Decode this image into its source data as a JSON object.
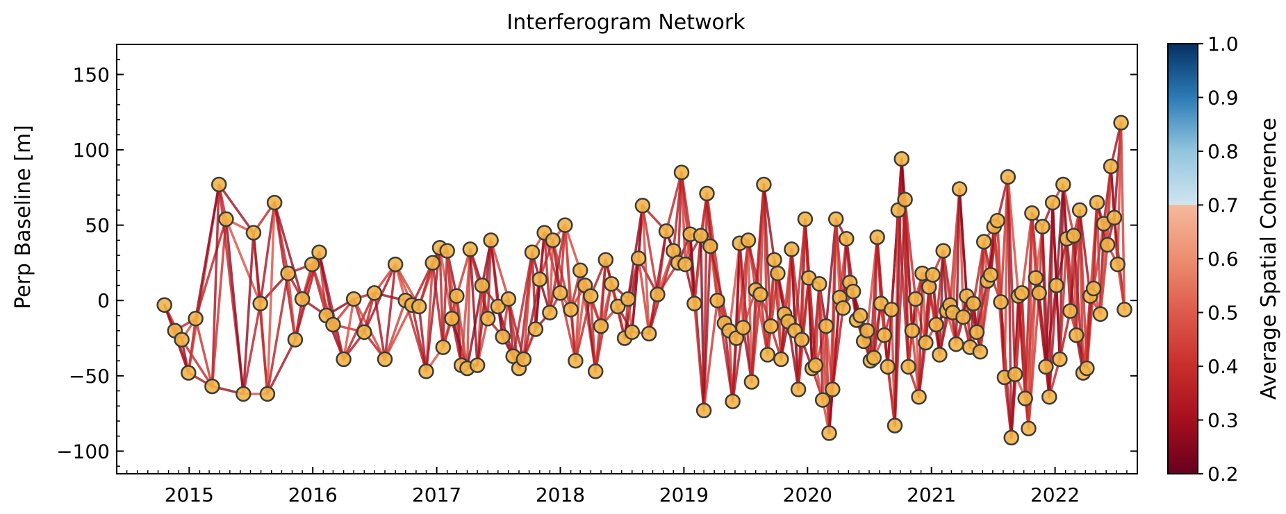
{
  "chart_data": {
    "type": "scatter",
    "title": "Interferogram Network",
    "xlabel": "",
    "ylabel": "Perp Baseline [m]",
    "xlim": [
      "2014-06-01",
      "2022-09-01"
    ],
    "ylim": [
      -115,
      170
    ],
    "x_ticks": [
      "2015",
      "2016",
      "2017",
      "2018",
      "2019",
      "2020",
      "2021",
      "2022"
    ],
    "y_ticks": [
      150,
      100,
      50,
      0,
      -50,
      -100
    ],
    "y_tick_labels": [
      "150",
      "100",
      "50",
      "0",
      "−50",
      "−100"
    ],
    "grid": false,
    "point_color": "#f2b447",
    "point_edge_color": "#3a3a3a",
    "colorbar": {
      "label": "Average Spatial Coherence",
      "range": [
        0.2,
        1.0
      ],
      "ticks": [
        "0.2",
        "0.3",
        "0.4",
        "0.5",
        "0.6",
        "0.7",
        "0.8",
        "0.9",
        "1.0"
      ],
      "tick_values": [
        0.2,
        0.3,
        0.4,
        0.5,
        0.6,
        0.7,
        0.8,
        0.9,
        1.0
      ],
      "colormap": "RdBu",
      "stops": [
        {
          "value": 0.2,
          "color": "#67001f"
        },
        {
          "value": 0.3,
          "color": "#a50f1e"
        },
        {
          "value": 0.4,
          "color": "#c82e2b"
        },
        {
          "value": 0.5,
          "color": "#dd5a4b"
        },
        {
          "value": 0.6,
          "color": "#ec8e6f"
        },
        {
          "value": 0.7,
          "color": "#f5b99c"
        },
        {
          "value": 0.7,
          "color": "#d1e5f0"
        },
        {
          "value": 0.8,
          "color": "#92c5de"
        },
        {
          "value": 0.9,
          "color": "#2c7bb6"
        },
        {
          "value": 1.0,
          "color": "#053061"
        }
      ]
    },
    "acquisitions": [
      {
        "date": "2014-10-20",
        "bperp": -3
      },
      {
        "date": "2014-11-20",
        "bperp": -20
      },
      {
        "date": "2014-12-10",
        "bperp": -26
      },
      {
        "date": "2014-12-30",
        "bperp": -48
      },
      {
        "date": "2015-01-20",
        "bperp": -12
      },
      {
        "date": "2015-03-10",
        "bperp": -57
      },
      {
        "date": "2015-03-30",
        "bperp": 77
      },
      {
        "date": "2015-04-20",
        "bperp": 54
      },
      {
        "date": "2015-06-10",
        "bperp": -62
      },
      {
        "date": "2015-07-10",
        "bperp": 45
      },
      {
        "date": "2015-07-30",
        "bperp": -2
      },
      {
        "date": "2015-08-20",
        "bperp": -62
      },
      {
        "date": "2015-09-10",
        "bperp": 65
      },
      {
        "date": "2015-10-20",
        "bperp": 18
      },
      {
        "date": "2015-11-10",
        "bperp": -26
      },
      {
        "date": "2015-12-01",
        "bperp": 1
      },
      {
        "date": "2015-12-30",
        "bperp": 24
      },
      {
        "date": "2016-01-20",
        "bperp": 32
      },
      {
        "date": "2016-02-10",
        "bperp": -10
      },
      {
        "date": "2016-03-01",
        "bperp": -16
      },
      {
        "date": "2016-04-01",
        "bperp": -39
      },
      {
        "date": "2016-05-01",
        "bperp": 1
      },
      {
        "date": "2016-06-01",
        "bperp": -21
      },
      {
        "date": "2016-07-01",
        "bperp": 5
      },
      {
        "date": "2016-08-01",
        "bperp": -39
      },
      {
        "date": "2016-09-01",
        "bperp": 24
      },
      {
        "date": "2016-10-01",
        "bperp": 0
      },
      {
        "date": "2016-10-20",
        "bperp": -3
      },
      {
        "date": "2016-11-10",
        "bperp": -4
      },
      {
        "date": "2016-12-01",
        "bperp": -47
      },
      {
        "date": "2016-12-20",
        "bperp": 25
      },
      {
        "date": "2017-01-10",
        "bperp": 35
      },
      {
        "date": "2017-01-20",
        "bperp": -31
      },
      {
        "date": "2017-02-01",
        "bperp": 33
      },
      {
        "date": "2017-02-15",
        "bperp": -12
      },
      {
        "date": "2017-03-01",
        "bperp": 3
      },
      {
        "date": "2017-03-15",
        "bperp": -43
      },
      {
        "date": "2017-04-01",
        "bperp": -45
      },
      {
        "date": "2017-04-10",
        "bperp": 34
      },
      {
        "date": "2017-05-01",
        "bperp": -43
      },
      {
        "date": "2017-05-15",
        "bperp": 10
      },
      {
        "date": "2017-06-01",
        "bperp": -12
      },
      {
        "date": "2017-06-10",
        "bperp": 40
      },
      {
        "date": "2017-07-01",
        "bperp": -4
      },
      {
        "date": "2017-07-15",
        "bperp": -24
      },
      {
        "date": "2017-08-01",
        "bperp": 1
      },
      {
        "date": "2017-08-15",
        "bperp": -37
      },
      {
        "date": "2017-09-01",
        "bperp": -45
      },
      {
        "date": "2017-09-15",
        "bperp": -39
      },
      {
        "date": "2017-10-10",
        "bperp": 32
      },
      {
        "date": "2017-10-20",
        "bperp": -19
      },
      {
        "date": "2017-11-01",
        "bperp": 14
      },
      {
        "date": "2017-11-15",
        "bperp": 45
      },
      {
        "date": "2017-12-01",
        "bperp": -8
      },
      {
        "date": "2017-12-10",
        "bperp": 40
      },
      {
        "date": "2018-01-01",
        "bperp": 5
      },
      {
        "date": "2018-01-15",
        "bperp": 50
      },
      {
        "date": "2018-02-01",
        "bperp": -6
      },
      {
        "date": "2018-02-15",
        "bperp": -40
      },
      {
        "date": "2018-03-01",
        "bperp": 20
      },
      {
        "date": "2018-03-15",
        "bperp": 10
      },
      {
        "date": "2018-04-01",
        "bperp": 3
      },
      {
        "date": "2018-04-15",
        "bperp": -47
      },
      {
        "date": "2018-05-01",
        "bperp": -17
      },
      {
        "date": "2018-05-15",
        "bperp": 27
      },
      {
        "date": "2018-06-01",
        "bperp": 11
      },
      {
        "date": "2018-06-20",
        "bperp": -4
      },
      {
        "date": "2018-07-10",
        "bperp": -25
      },
      {
        "date": "2018-07-20",
        "bperp": 1
      },
      {
        "date": "2018-08-01",
        "bperp": -21
      },
      {
        "date": "2018-08-20",
        "bperp": 28
      },
      {
        "date": "2018-09-01",
        "bperp": 63
      },
      {
        "date": "2018-09-20",
        "bperp": -22
      },
      {
        "date": "2018-10-15",
        "bperp": 4
      },
      {
        "date": "2018-11-10",
        "bperp": 46
      },
      {
        "date": "2018-12-01",
        "bperp": 33
      },
      {
        "date": "2018-12-15",
        "bperp": 25
      },
      {
        "date": "2018-12-25",
        "bperp": 85
      },
      {
        "date": "2019-01-05",
        "bperp": 24
      },
      {
        "date": "2019-01-20",
        "bperp": 44
      },
      {
        "date": "2019-02-01",
        "bperp": -2
      },
      {
        "date": "2019-02-20",
        "bperp": 43
      },
      {
        "date": "2019-03-01",
        "bperp": -73
      },
      {
        "date": "2019-03-10",
        "bperp": 71
      },
      {
        "date": "2019-03-20",
        "bperp": 36
      },
      {
        "date": "2019-04-10",
        "bperp": 0
      },
      {
        "date": "2019-05-01",
        "bperp": -15
      },
      {
        "date": "2019-05-15",
        "bperp": -20
      },
      {
        "date": "2019-05-25",
        "bperp": -67
      },
      {
        "date": "2019-06-05",
        "bperp": -25
      },
      {
        "date": "2019-06-15",
        "bperp": 38
      },
      {
        "date": "2019-06-25",
        "bperp": -18
      },
      {
        "date": "2019-07-10",
        "bperp": 40
      },
      {
        "date": "2019-07-20",
        "bperp": -54
      },
      {
        "date": "2019-08-01",
        "bperp": 7
      },
      {
        "date": "2019-08-15",
        "bperp": 4
      },
      {
        "date": "2019-08-25",
        "bperp": 77
      },
      {
        "date": "2019-09-05",
        "bperp": -36
      },
      {
        "date": "2019-09-15",
        "bperp": -17
      },
      {
        "date": "2019-09-25",
        "bperp": 27
      },
      {
        "date": "2019-10-05",
        "bperp": 18
      },
      {
        "date": "2019-10-15",
        "bperp": -39
      },
      {
        "date": "2019-10-25",
        "bperp": -9
      },
      {
        "date": "2019-11-05",
        "bperp": -14
      },
      {
        "date": "2019-11-15",
        "bperp": 34
      },
      {
        "date": "2019-11-25",
        "bperp": -20
      },
      {
        "date": "2019-12-05",
        "bperp": -59
      },
      {
        "date": "2019-12-15",
        "bperp": -26
      },
      {
        "date": "2019-12-25",
        "bperp": 54
      },
      {
        "date": "2020-01-05",
        "bperp": 15
      },
      {
        "date": "2020-01-15",
        "bperp": -45
      },
      {
        "date": "2020-01-25",
        "bperp": -43
      },
      {
        "date": "2020-02-05",
        "bperp": 11
      },
      {
        "date": "2020-02-15",
        "bperp": -66
      },
      {
        "date": "2020-02-25",
        "bperp": -17
      },
      {
        "date": "2020-03-05",
        "bperp": -88
      },
      {
        "date": "2020-03-15",
        "bperp": -59
      },
      {
        "date": "2020-03-25",
        "bperp": 54
      },
      {
        "date": "2020-04-05",
        "bperp": 2
      },
      {
        "date": "2020-04-15",
        "bperp": -5
      },
      {
        "date": "2020-04-25",
        "bperp": 41
      },
      {
        "date": "2020-05-05",
        "bperp": 12
      },
      {
        "date": "2020-05-15",
        "bperp": 6
      },
      {
        "date": "2020-05-25",
        "bperp": -13
      },
      {
        "date": "2020-06-05",
        "bperp": -10
      },
      {
        "date": "2020-06-15",
        "bperp": -27
      },
      {
        "date": "2020-06-25",
        "bperp": -20
      },
      {
        "date": "2020-07-05",
        "bperp": -40
      },
      {
        "date": "2020-07-15",
        "bperp": -38
      },
      {
        "date": "2020-07-25",
        "bperp": 42
      },
      {
        "date": "2020-08-05",
        "bperp": -2
      },
      {
        "date": "2020-08-15",
        "bperp": -23
      },
      {
        "date": "2020-08-25",
        "bperp": -44
      },
      {
        "date": "2020-09-05",
        "bperp": -6
      },
      {
        "date": "2020-09-15",
        "bperp": -83
      },
      {
        "date": "2020-09-25",
        "bperp": 60
      },
      {
        "date": "2020-10-05",
        "bperp": 94
      },
      {
        "date": "2020-10-15",
        "bperp": 67
      },
      {
        "date": "2020-10-25",
        "bperp": -44
      },
      {
        "date": "2020-11-05",
        "bperp": -20
      },
      {
        "date": "2020-11-15",
        "bperp": 1
      },
      {
        "date": "2020-11-25",
        "bperp": -64
      },
      {
        "date": "2020-12-05",
        "bperp": 18
      },
      {
        "date": "2020-12-15",
        "bperp": -28
      },
      {
        "date": "2020-12-25",
        "bperp": 9
      },
      {
        "date": "2021-01-05",
        "bperp": 17
      },
      {
        "date": "2021-01-15",
        "bperp": -16
      },
      {
        "date": "2021-01-25",
        "bperp": -36
      },
      {
        "date": "2021-02-05",
        "bperp": 33
      },
      {
        "date": "2021-02-15",
        "bperp": -7
      },
      {
        "date": "2021-02-25",
        "bperp": -3
      },
      {
        "date": "2021-03-05",
        "bperp": -8
      },
      {
        "date": "2021-03-15",
        "bperp": -29
      },
      {
        "date": "2021-03-25",
        "bperp": 74
      },
      {
        "date": "2021-04-05",
        "bperp": -11
      },
      {
        "date": "2021-04-15",
        "bperp": 3
      },
      {
        "date": "2021-04-25",
        "bperp": -31
      },
      {
        "date": "2021-05-05",
        "bperp": -2
      },
      {
        "date": "2021-05-15",
        "bperp": -21
      },
      {
        "date": "2021-05-25",
        "bperp": -34
      },
      {
        "date": "2021-06-05",
        "bperp": 39
      },
      {
        "date": "2021-06-15",
        "bperp": 13
      },
      {
        "date": "2021-06-25",
        "bperp": 17
      },
      {
        "date": "2021-07-05",
        "bperp": 49
      },
      {
        "date": "2021-07-15",
        "bperp": 53
      },
      {
        "date": "2021-07-25",
        "bperp": -1
      },
      {
        "date": "2021-08-05",
        "bperp": -51
      },
      {
        "date": "2021-08-15",
        "bperp": 82
      },
      {
        "date": "2021-08-25",
        "bperp": -91
      },
      {
        "date": "2021-09-05",
        "bperp": -49
      },
      {
        "date": "2021-09-15",
        "bperp": 3
      },
      {
        "date": "2021-09-25",
        "bperp": 5
      },
      {
        "date": "2021-10-05",
        "bperp": -65
      },
      {
        "date": "2021-10-15",
        "bperp": -85
      },
      {
        "date": "2021-10-25",
        "bperp": 58
      },
      {
        "date": "2021-11-05",
        "bperp": 15
      },
      {
        "date": "2021-11-15",
        "bperp": 5
      },
      {
        "date": "2021-11-25",
        "bperp": 49
      },
      {
        "date": "2021-12-05",
        "bperp": -44
      },
      {
        "date": "2021-12-15",
        "bperp": -64
      },
      {
        "date": "2021-12-25",
        "bperp": 65
      },
      {
        "date": "2022-01-05",
        "bperp": 10
      },
      {
        "date": "2022-01-15",
        "bperp": -39
      },
      {
        "date": "2022-01-25",
        "bperp": 77
      },
      {
        "date": "2022-02-05",
        "bperp": 41
      },
      {
        "date": "2022-02-15",
        "bperp": -7
      },
      {
        "date": "2022-02-25",
        "bperp": 43
      },
      {
        "date": "2022-03-05",
        "bperp": -23
      },
      {
        "date": "2022-03-15",
        "bperp": 60
      },
      {
        "date": "2022-03-25",
        "bperp": -48
      },
      {
        "date": "2022-04-05",
        "bperp": -45
      },
      {
        "date": "2022-04-15",
        "bperp": 3
      },
      {
        "date": "2022-04-25",
        "bperp": 8
      },
      {
        "date": "2022-05-05",
        "bperp": 65
      },
      {
        "date": "2022-05-15",
        "bperp": -9
      },
      {
        "date": "2022-05-25",
        "bperp": 51
      },
      {
        "date": "2022-06-05",
        "bperp": 37
      },
      {
        "date": "2022-06-15",
        "bperp": 89
      },
      {
        "date": "2022-06-25",
        "bperp": 55
      },
      {
        "date": "2022-07-05",
        "bperp": 24
      },
      {
        "date": "2022-07-15",
        "bperp": 118
      },
      {
        "date": "2022-07-25",
        "bperp": -6
      }
    ],
    "network": {
      "connections_per_acquisition": 3,
      "coherence_range": [
        0.25,
        0.48
      ]
    }
  }
}
